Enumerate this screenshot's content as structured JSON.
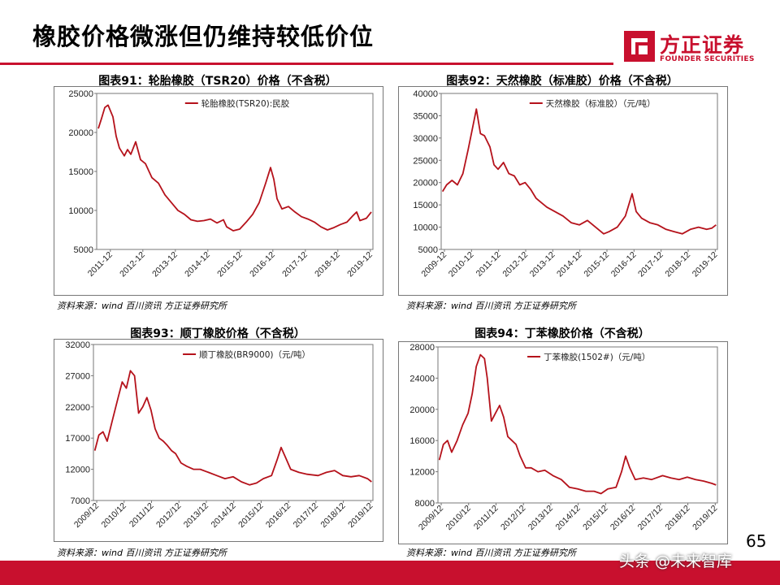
{
  "page": {
    "title": "橡胶价格微涨但仍维持较低价位",
    "page_number": "65",
    "watermark": "头条 @未来智库"
  },
  "logo": {
    "name_cn": "方正证券",
    "name_en": "FOUNDER SECURITIES",
    "color": "#c8102e"
  },
  "chart_data": [
    {
      "id": "chart91",
      "type": "line",
      "title": "图表91：轮胎橡胶（TSR20）价格（不含税）",
      "source": "资料来源：wind 百川资讯 方正证券研究所",
      "legend": "轮胎橡胶(TSR20):民胶",
      "legend_position": "top",
      "grid": false,
      "color": "#b5121b",
      "ylim": [
        5000,
        25000
      ],
      "yticks": [
        "25000",
        "20000",
        "15000",
        "10000",
        "5000"
      ],
      "ytick_values": [
        25000,
        20000,
        15000,
        10000,
        5000
      ],
      "xlim": [
        2011.5,
        2020.0
      ],
      "xticks": [
        "2011-12",
        "2012-12",
        "2013-12",
        "2014-12",
        "2015-12",
        "2016-12",
        "2017-12",
        "2018-12",
        "2019-12"
      ],
      "xtick_values": [
        2011.92,
        2012.92,
        2013.92,
        2014.92,
        2015.92,
        2016.92,
        2017.92,
        2018.92,
        2019.92
      ],
      "x": [
        2011.55,
        2011.65,
        2011.75,
        2011.85,
        2012.0,
        2012.1,
        2012.2,
        2012.35,
        2012.45,
        2012.55,
        2012.7,
        2012.85,
        2013.0,
        2013.2,
        2013.4,
        2013.6,
        2013.8,
        2014.0,
        2014.2,
        2014.4,
        2014.6,
        2014.8,
        2015.0,
        2015.2,
        2015.4,
        2015.5,
        2015.7,
        2015.9,
        2016.1,
        2016.3,
        2016.5,
        2016.7,
        2016.85,
        2016.95,
        2017.05,
        2017.2,
        2017.4,
        2017.6,
        2017.8,
        2018.0,
        2018.2,
        2018.4,
        2018.6,
        2018.8,
        2019.0,
        2019.2,
        2019.4,
        2019.5,
        2019.6,
        2019.8,
        2019.95
      ],
      "values": [
        20500,
        21800,
        23200,
        23500,
        22000,
        19500,
        18000,
        17000,
        17800,
        17200,
        18800,
        16500,
        16000,
        14200,
        13500,
        12000,
        11000,
        10000,
        9500,
        8800,
        8600,
        8700,
        8900,
        8400,
        8800,
        7900,
        7400,
        7600,
        8500,
        9500,
        11000,
        13500,
        15500,
        14000,
        11500,
        10200,
        10500,
        9800,
        9200,
        8900,
        8500,
        7900,
        7500,
        7800,
        8200,
        8500,
        9400,
        9800,
        8700,
        9000,
        9800
      ]
    },
    {
      "id": "chart92",
      "type": "line",
      "title": "图表92：天然橡胶（标准胶）价格（不含税）",
      "source": "资料来源：wind 百川资讯 方正证券研究所",
      "legend": "天然橡胶（标准胶）（元/吨）",
      "legend_position": "top",
      "grid": false,
      "color": "#b5121b",
      "ylim": [
        5000,
        40000
      ],
      "yticks": [
        "40000",
        "35000",
        "30000",
        "25000",
        "20000",
        "15000",
        "10000",
        "5000"
      ],
      "ytick_values": [
        40000,
        35000,
        30000,
        25000,
        20000,
        15000,
        10000,
        5000
      ],
      "xlim": [
        2009.8,
        2020.0
      ],
      "xticks": [
        "2009-12",
        "2010-12",
        "2011-12",
        "2012-12",
        "2013-12",
        "2014-12",
        "2015-12",
        "2016-12",
        "2017-12",
        "2018-12",
        "2019-12"
      ],
      "xtick_values": [
        2009.92,
        2010.92,
        2011.92,
        2012.92,
        2013.92,
        2014.92,
        2015.92,
        2016.92,
        2017.92,
        2018.92,
        2019.92
      ],
      "x": [
        2009.85,
        2010.0,
        2010.2,
        2010.4,
        2010.6,
        2010.8,
        2010.95,
        2011.1,
        2011.25,
        2011.4,
        2011.6,
        2011.75,
        2011.9,
        2012.1,
        2012.3,
        2012.5,
        2012.7,
        2012.9,
        2013.1,
        2013.3,
        2013.5,
        2013.7,
        2014.0,
        2014.3,
        2014.6,
        2014.9,
        2015.2,
        2015.5,
        2015.8,
        2016.0,
        2016.3,
        2016.6,
        2016.85,
        2017.0,
        2017.2,
        2017.5,
        2017.8,
        2018.1,
        2018.4,
        2018.7,
        2019.0,
        2019.3,
        2019.6,
        2019.8,
        2019.95
      ],
      "values": [
        18000,
        19500,
        20500,
        19500,
        22000,
        27500,
        32000,
        36500,
        31000,
        30500,
        28000,
        24000,
        23000,
        24500,
        22000,
        21500,
        19500,
        20000,
        18500,
        16500,
        15500,
        14500,
        13500,
        12500,
        11000,
        10500,
        11500,
        10000,
        8500,
        9000,
        10000,
        12500,
        17500,
        13500,
        12000,
        11000,
        10500,
        9500,
        9000,
        8500,
        9500,
        10000,
        9500,
        9800,
        10500
      ]
    },
    {
      "id": "chart93",
      "type": "line",
      "title": "图表93：顺丁橡胶价格（不含税）",
      "source": "资料来源：wind 百川资讯 方正证券研究所",
      "legend": "顺丁橡胶(BR9000)（元/吨）",
      "legend_position": "top",
      "grid": false,
      "color": "#b5121b",
      "ylim": [
        7000,
        32000
      ],
      "yticks": [
        "32000",
        "27000",
        "22000",
        "17000",
        "12000",
        "7000"
      ],
      "ytick_values": [
        32000,
        27000,
        22000,
        17000,
        12000,
        7000
      ],
      "xlim": [
        2009.8,
        2020.0
      ],
      "xticks": [
        "2009/12",
        "2010/12",
        "2011/12",
        "2012/12",
        "2013/12",
        "2014/12",
        "2015/12",
        "2016/12",
        "2017/12",
        "2018/12",
        "2019/12"
      ],
      "xtick_values": [
        2009.92,
        2010.92,
        2011.92,
        2012.92,
        2013.92,
        2014.92,
        2015.92,
        2016.92,
        2017.92,
        2018.92,
        2019.92
      ],
      "x": [
        2009.85,
        2010.0,
        2010.15,
        2010.3,
        2010.5,
        2010.7,
        2010.85,
        2011.0,
        2011.15,
        2011.3,
        2011.45,
        2011.6,
        2011.75,
        2011.9,
        2012.05,
        2012.2,
        2012.35,
        2012.5,
        2012.65,
        2012.8,
        2013.0,
        2013.2,
        2013.45,
        2013.7,
        2014.0,
        2014.3,
        2014.6,
        2014.9,
        2015.2,
        2015.5,
        2015.75,
        2016.0,
        2016.3,
        2016.5,
        2016.65,
        2016.8,
        2017.0,
        2017.3,
        2017.6,
        2018.0,
        2018.3,
        2018.6,
        2018.9,
        2019.2,
        2019.5,
        2019.8,
        2019.95
      ],
      "values": [
        15000,
        17500,
        18000,
        16500,
        20000,
        23500,
        26000,
        25000,
        27800,
        27000,
        21000,
        22000,
        23500,
        21500,
        18500,
        17000,
        16500,
        15800,
        15000,
        14500,
        13000,
        12500,
        12000,
        12000,
        11500,
        11000,
        10500,
        10800,
        10000,
        9500,
        9800,
        10500,
        11000,
        13500,
        15500,
        14000,
        12000,
        11500,
        11200,
        11000,
        11500,
        11800,
        11000,
        10800,
        11000,
        10500,
        10000
      ]
    },
    {
      "id": "chart94",
      "type": "line",
      "title": "图表94：丁苯橡胶价格（不含税）",
      "source": "资料来源：wind 百川资讯 方正证券研究所",
      "legend": "丁苯橡胶(1502#)（元/吨）",
      "legend_position": "top",
      "grid": false,
      "color": "#b5121b",
      "ylim": [
        8000,
        28000
      ],
      "yticks": [
        "28000",
        "24000",
        "20000",
        "16000",
        "12000",
        "8000"
      ],
      "ytick_values": [
        28000,
        24000,
        20000,
        16000,
        12000,
        8000
      ],
      "xlim": [
        2009.8,
        2020.0
      ],
      "xticks": [
        "2009/12",
        "2010/12",
        "2011/12",
        "2012/12",
        "2013/12",
        "2014/12",
        "2015/12",
        "2016/12",
        "2017/12",
        "2018/12",
        "2019/12"
      ],
      "xtick_values": [
        2009.92,
        2010.92,
        2011.92,
        2012.92,
        2013.92,
        2014.92,
        2015.92,
        2016.92,
        2017.92,
        2018.92,
        2019.92
      ],
      "x": [
        2009.85,
        2010.0,
        2010.15,
        2010.3,
        2010.5,
        2010.7,
        2010.9,
        2011.05,
        2011.2,
        2011.35,
        2011.5,
        2011.6,
        2011.75,
        2011.9,
        2012.05,
        2012.2,
        2012.35,
        2012.5,
        2012.65,
        2012.8,
        2013.0,
        2013.2,
        2013.45,
        2013.7,
        2014.0,
        2014.3,
        2014.6,
        2014.9,
        2015.2,
        2015.5,
        2015.75,
        2016.0,
        2016.3,
        2016.5,
        2016.65,
        2016.8,
        2017.0,
        2017.3,
        2017.6,
        2018.0,
        2018.3,
        2018.6,
        2018.9,
        2019.2,
        2019.5,
        2019.8,
        2019.95
      ],
      "values": [
        13500,
        15500,
        16000,
        14500,
        16000,
        18000,
        19500,
        22000,
        25500,
        27000,
        26500,
        24000,
        18500,
        19500,
        20500,
        19000,
        16500,
        16000,
        15500,
        14000,
        12500,
        12500,
        12000,
        12200,
        11500,
        11000,
        10000,
        9800,
        9500,
        9500,
        9200,
        9800,
        10000,
        12000,
        14000,
        12500,
        11000,
        11200,
        11000,
        11500,
        11200,
        11000,
        11300,
        11000,
        10800,
        10500,
        10300
      ]
    }
  ]
}
